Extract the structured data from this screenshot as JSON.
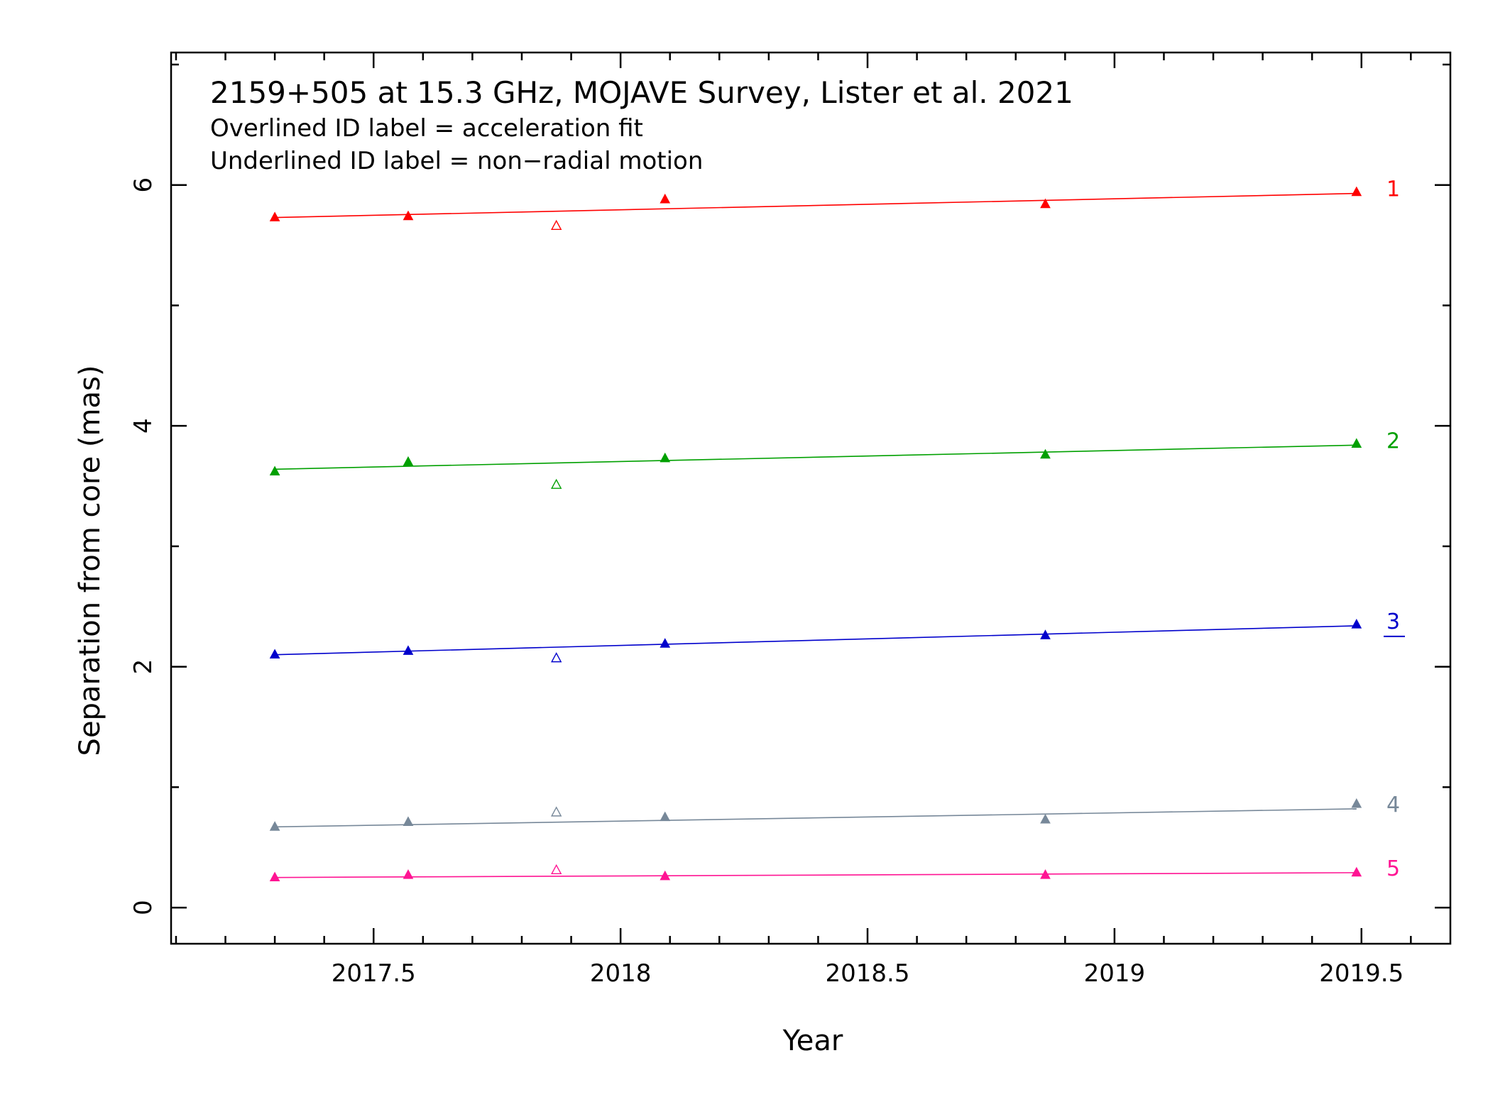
{
  "chart_data": {
    "type": "scatter",
    "title": "2159+505 at 15.3 GHz, MOJAVE Survey, Lister et al. 2021",
    "notes": [
      "Overlined ID label = acceleration fit",
      "Underlined ID label = non−radial motion"
    ],
    "xlabel": "Year",
    "ylabel": "Separation from core (mas)",
    "xlim": [
      2017.09,
      2019.68
    ],
    "ylim": [
      -0.3,
      7.1
    ],
    "xticks": [
      2017.5,
      2018,
      2018.5,
      2019,
      2019.5
    ],
    "xtick_labels": [
      "2017.5",
      "2018",
      "2018.5",
      "2019",
      "2019.5"
    ],
    "xminor_step": 0.1,
    "yticks": [
      0,
      2,
      4,
      6
    ],
    "ytick_labels": [
      "0",
      "2",
      "4",
      "6"
    ],
    "yminor_step": 1,
    "series": [
      {
        "name": "1",
        "color": "#ff0000",
        "label_style": "plain",
        "x": [
          2017.3,
          2017.57,
          2017.87,
          2018.09,
          2018.86,
          2019.49
        ],
        "y": [
          5.73,
          5.74,
          5.66,
          5.88,
          5.84,
          5.94
        ],
        "filled": [
          true,
          true,
          false,
          true,
          true,
          true
        ],
        "fit": [
          [
            2017.3,
            5.73
          ],
          [
            2019.49,
            5.93
          ]
        ]
      },
      {
        "name": "2",
        "color": "#00a000",
        "label_style": "plain",
        "x": [
          2017.3,
          2017.57,
          2017.87,
          2018.09,
          2018.86,
          2019.49
        ],
        "y": [
          3.62,
          3.7,
          3.51,
          3.73,
          3.76,
          3.85
        ],
        "filled": [
          true,
          true,
          false,
          true,
          true,
          true
        ],
        "fit": [
          [
            2017.3,
            3.64
          ],
          [
            2019.49,
            3.84
          ]
        ]
      },
      {
        "name": "3",
        "color": "#0000cc",
        "label_style": "underline",
        "x": [
          2017.3,
          2017.57,
          2017.87,
          2018.09,
          2018.86,
          2019.49
        ],
        "y": [
          2.1,
          2.13,
          2.07,
          2.19,
          2.26,
          2.35
        ],
        "filled": [
          true,
          true,
          false,
          true,
          true,
          true
        ],
        "fit": [
          [
            2017.3,
            2.1
          ],
          [
            2019.49,
            2.34
          ]
        ]
      },
      {
        "name": "4",
        "color": "#778899",
        "label_style": "plain",
        "x": [
          2017.3,
          2017.57,
          2017.87,
          2018.09,
          2018.86,
          2019.49
        ],
        "y": [
          0.67,
          0.71,
          0.79,
          0.75,
          0.73,
          0.86
        ],
        "filled": [
          true,
          true,
          false,
          true,
          true,
          true
        ],
        "fit": [
          [
            2017.3,
            0.67
          ],
          [
            2019.49,
            0.82
          ]
        ]
      },
      {
        "name": "5",
        "color": "#ff1493",
        "label_style": "plain",
        "x": [
          2017.3,
          2017.57,
          2017.87,
          2018.09,
          2018.86,
          2019.49
        ],
        "y": [
          0.25,
          0.27,
          0.31,
          0.26,
          0.27,
          0.29
        ],
        "filled": [
          true,
          true,
          false,
          true,
          true,
          true
        ],
        "fit": [
          [
            2017.3,
            0.25
          ],
          [
            2019.49,
            0.29
          ]
        ]
      }
    ]
  }
}
